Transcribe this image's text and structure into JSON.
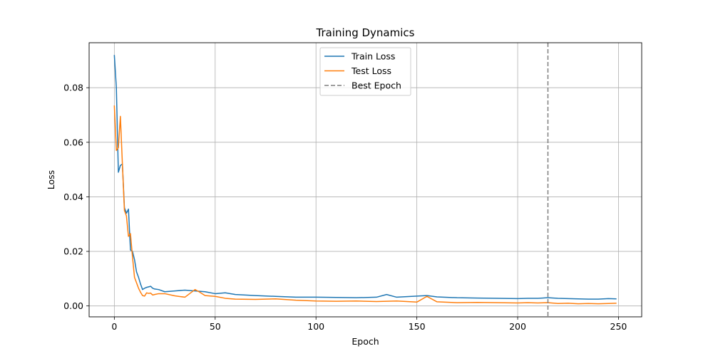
{
  "chart_data": {
    "type": "line",
    "title": "Training Dynamics",
    "xlabel": "Epoch",
    "ylabel": "Loss",
    "xlim": [
      -12.5,
      261.5
    ],
    "ylim": [
      -0.004,
      0.0965
    ],
    "xticks": [
      0,
      50,
      100,
      150,
      200,
      250
    ],
    "yticks": [
      0.0,
      0.02,
      0.04,
      0.06,
      0.08
    ],
    "ytick_labels": [
      "0.00",
      "0.02",
      "0.04",
      "0.06",
      "0.08"
    ],
    "grid": true,
    "legend_position": "upper-center",
    "best_epoch": 215,
    "series": [
      {
        "name": "Train Loss",
        "color": "#1f77b4",
        "points": [
          [
            0,
            0.092
          ],
          [
            1,
            0.08
          ],
          [
            2,
            0.049
          ],
          [
            3,
            0.0515
          ],
          [
            4,
            0.052
          ],
          [
            5,
            0.036
          ],
          [
            6,
            0.034
          ],
          [
            7,
            0.0355
          ],
          [
            8,
            0.0205
          ],
          [
            9,
            0.02
          ],
          [
            10,
            0.017
          ],
          [
            11,
            0.0125
          ],
          [
            12,
            0.0105
          ],
          [
            13,
            0.008
          ],
          [
            14,
            0.006
          ],
          [
            15,
            0.0065
          ],
          [
            16,
            0.0068
          ],
          [
            17,
            0.007
          ],
          [
            18,
            0.0072
          ],
          [
            19,
            0.0065
          ],
          [
            20,
            0.0062
          ],
          [
            22,
            0.006
          ],
          [
            25,
            0.0052
          ],
          [
            30,
            0.0055
          ],
          [
            35,
            0.0058
          ],
          [
            40,
            0.0055
          ],
          [
            45,
            0.0052
          ],
          [
            50,
            0.0045
          ],
          [
            55,
            0.0048
          ],
          [
            60,
            0.0042
          ],
          [
            70,
            0.0038
          ],
          [
            80,
            0.0035
          ],
          [
            90,
            0.0032
          ],
          [
            100,
            0.0032
          ],
          [
            110,
            0.0031
          ],
          [
            120,
            0.003
          ],
          [
            130,
            0.0032
          ],
          [
            135,
            0.0042
          ],
          [
            140,
            0.0032
          ],
          [
            150,
            0.0036
          ],
          [
            155,
            0.0038
          ],
          [
            160,
            0.0033
          ],
          [
            170,
            0.003
          ],
          [
            180,
            0.0029
          ],
          [
            190,
            0.0028
          ],
          [
            200,
            0.0027
          ],
          [
            205,
            0.0028
          ],
          [
            210,
            0.0028
          ],
          [
            215,
            0.003
          ],
          [
            220,
            0.0028
          ],
          [
            225,
            0.0027
          ],
          [
            230,
            0.0026
          ],
          [
            235,
            0.0025
          ],
          [
            240,
            0.0025
          ],
          [
            245,
            0.0027
          ],
          [
            249,
            0.0026
          ]
        ]
      },
      {
        "name": "Test Loss",
        "color": "#ff7f0e",
        "points": [
          [
            0,
            0.0735
          ],
          [
            1,
            0.057
          ],
          [
            2,
            0.058
          ],
          [
            3,
            0.0695
          ],
          [
            4,
            0.052
          ],
          [
            5,
            0.035
          ],
          [
            6,
            0.033
          ],
          [
            7,
            0.0255
          ],
          [
            8,
            0.0265
          ],
          [
            9,
            0.018
          ],
          [
            10,
            0.0105
          ],
          [
            11,
            0.0085
          ],
          [
            12,
            0.0065
          ],
          [
            13,
            0.005
          ],
          [
            14,
            0.0038
          ],
          [
            15,
            0.0036
          ],
          [
            16,
            0.0048
          ],
          [
            17,
            0.0046
          ],
          [
            18,
            0.0047
          ],
          [
            19,
            0.004
          ],
          [
            20,
            0.0042
          ],
          [
            22,
            0.0045
          ],
          [
            25,
            0.0045
          ],
          [
            30,
            0.0037
          ],
          [
            35,
            0.0032
          ],
          [
            40,
            0.006
          ],
          [
            42,
            0.0052
          ],
          [
            45,
            0.0038
          ],
          [
            50,
            0.0035
          ],
          [
            55,
            0.0028
          ],
          [
            60,
            0.0025
          ],
          [
            70,
            0.0024
          ],
          [
            80,
            0.0026
          ],
          [
            90,
            0.0021
          ],
          [
            100,
            0.0018
          ],
          [
            110,
            0.0017
          ],
          [
            120,
            0.0018
          ],
          [
            130,
            0.0016
          ],
          [
            140,
            0.0018
          ],
          [
            150,
            0.0014
          ],
          [
            155,
            0.0035
          ],
          [
            160,
            0.0015
          ],
          [
            170,
            0.0012
          ],
          [
            180,
            0.0013
          ],
          [
            190,
            0.0012
          ],
          [
            200,
            0.0011
          ],
          [
            205,
            0.0012
          ],
          [
            210,
            0.0011
          ],
          [
            215,
            0.0012
          ],
          [
            220,
            0.0009
          ],
          [
            225,
            0.001
          ],
          [
            230,
            0.0008
          ],
          [
            235,
            0.0009
          ],
          [
            240,
            0.0008
          ],
          [
            245,
            0.0009
          ],
          [
            249,
            0.001
          ]
        ]
      }
    ],
    "best_epoch_line": {
      "name": "Best Epoch",
      "color": "#7f7f7f",
      "dashed": true
    }
  }
}
